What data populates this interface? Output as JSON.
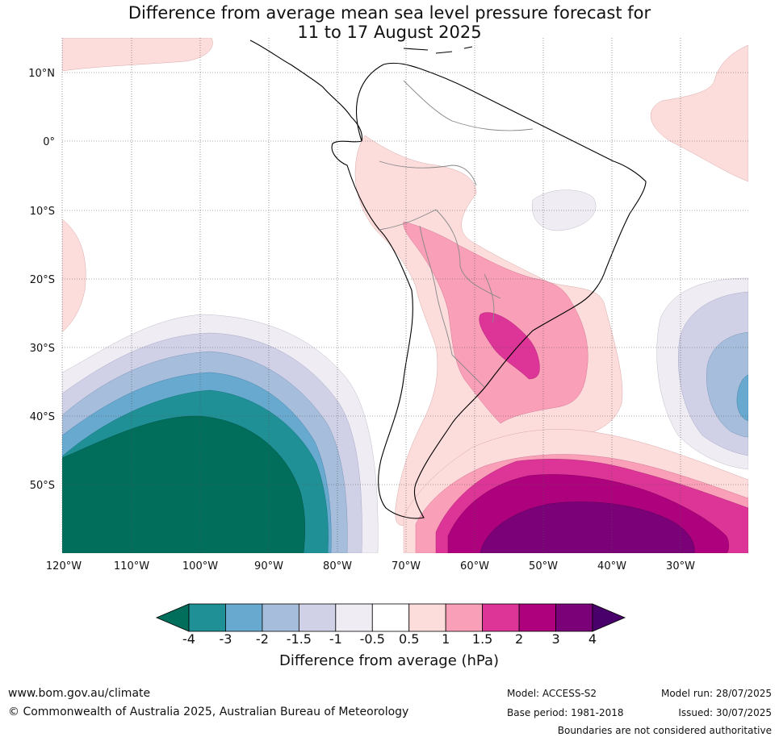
{
  "title": {
    "line1": "Difference from average mean sea level pressure forecast for",
    "line2": "11 to 17 August 2025"
  },
  "map": {
    "lat_labels": [
      "10°N",
      "0°",
      "10°S",
      "20°S",
      "30°S",
      "40°S",
      "50°S"
    ],
    "lon_labels": [
      "120°W",
      "110°W",
      "100°W",
      "90°W",
      "80°W",
      "70°W",
      "60°W",
      "50°W",
      "40°W",
      "30°W"
    ],
    "region": "South America and adjacent oceans"
  },
  "legend": {
    "ticks": [
      "-4",
      "-3",
      "-2",
      "-1.5",
      "-1",
      "-0.5",
      "0.5",
      "1",
      "1.5",
      "2",
      "3",
      "4"
    ],
    "colors": [
      "#006e5a",
      "#1f9196",
      "#67a9cf",
      "#a6bddb",
      "#d0d1e6",
      "#f0ecf3",
      "#ffffff",
      "#fddcdc",
      "#f99fb8",
      "#dd3497",
      "#ae017e",
      "#7a0177",
      "#49006a"
    ],
    "label": "Difference from average (hPa)"
  },
  "footer": {
    "site": "www.bom.gov.au/climate",
    "copyright": "© Commonwealth of Australia 2025, Australian Bureau of Meteorology",
    "model": "Model: ACCESS-S2",
    "base_period": "Base period: 1981-2018",
    "model_run": "Model run: 28/07/2025",
    "issued": "Issued: 30/07/2025",
    "boundaries": "Boundaries are not considered authoritative"
  }
}
